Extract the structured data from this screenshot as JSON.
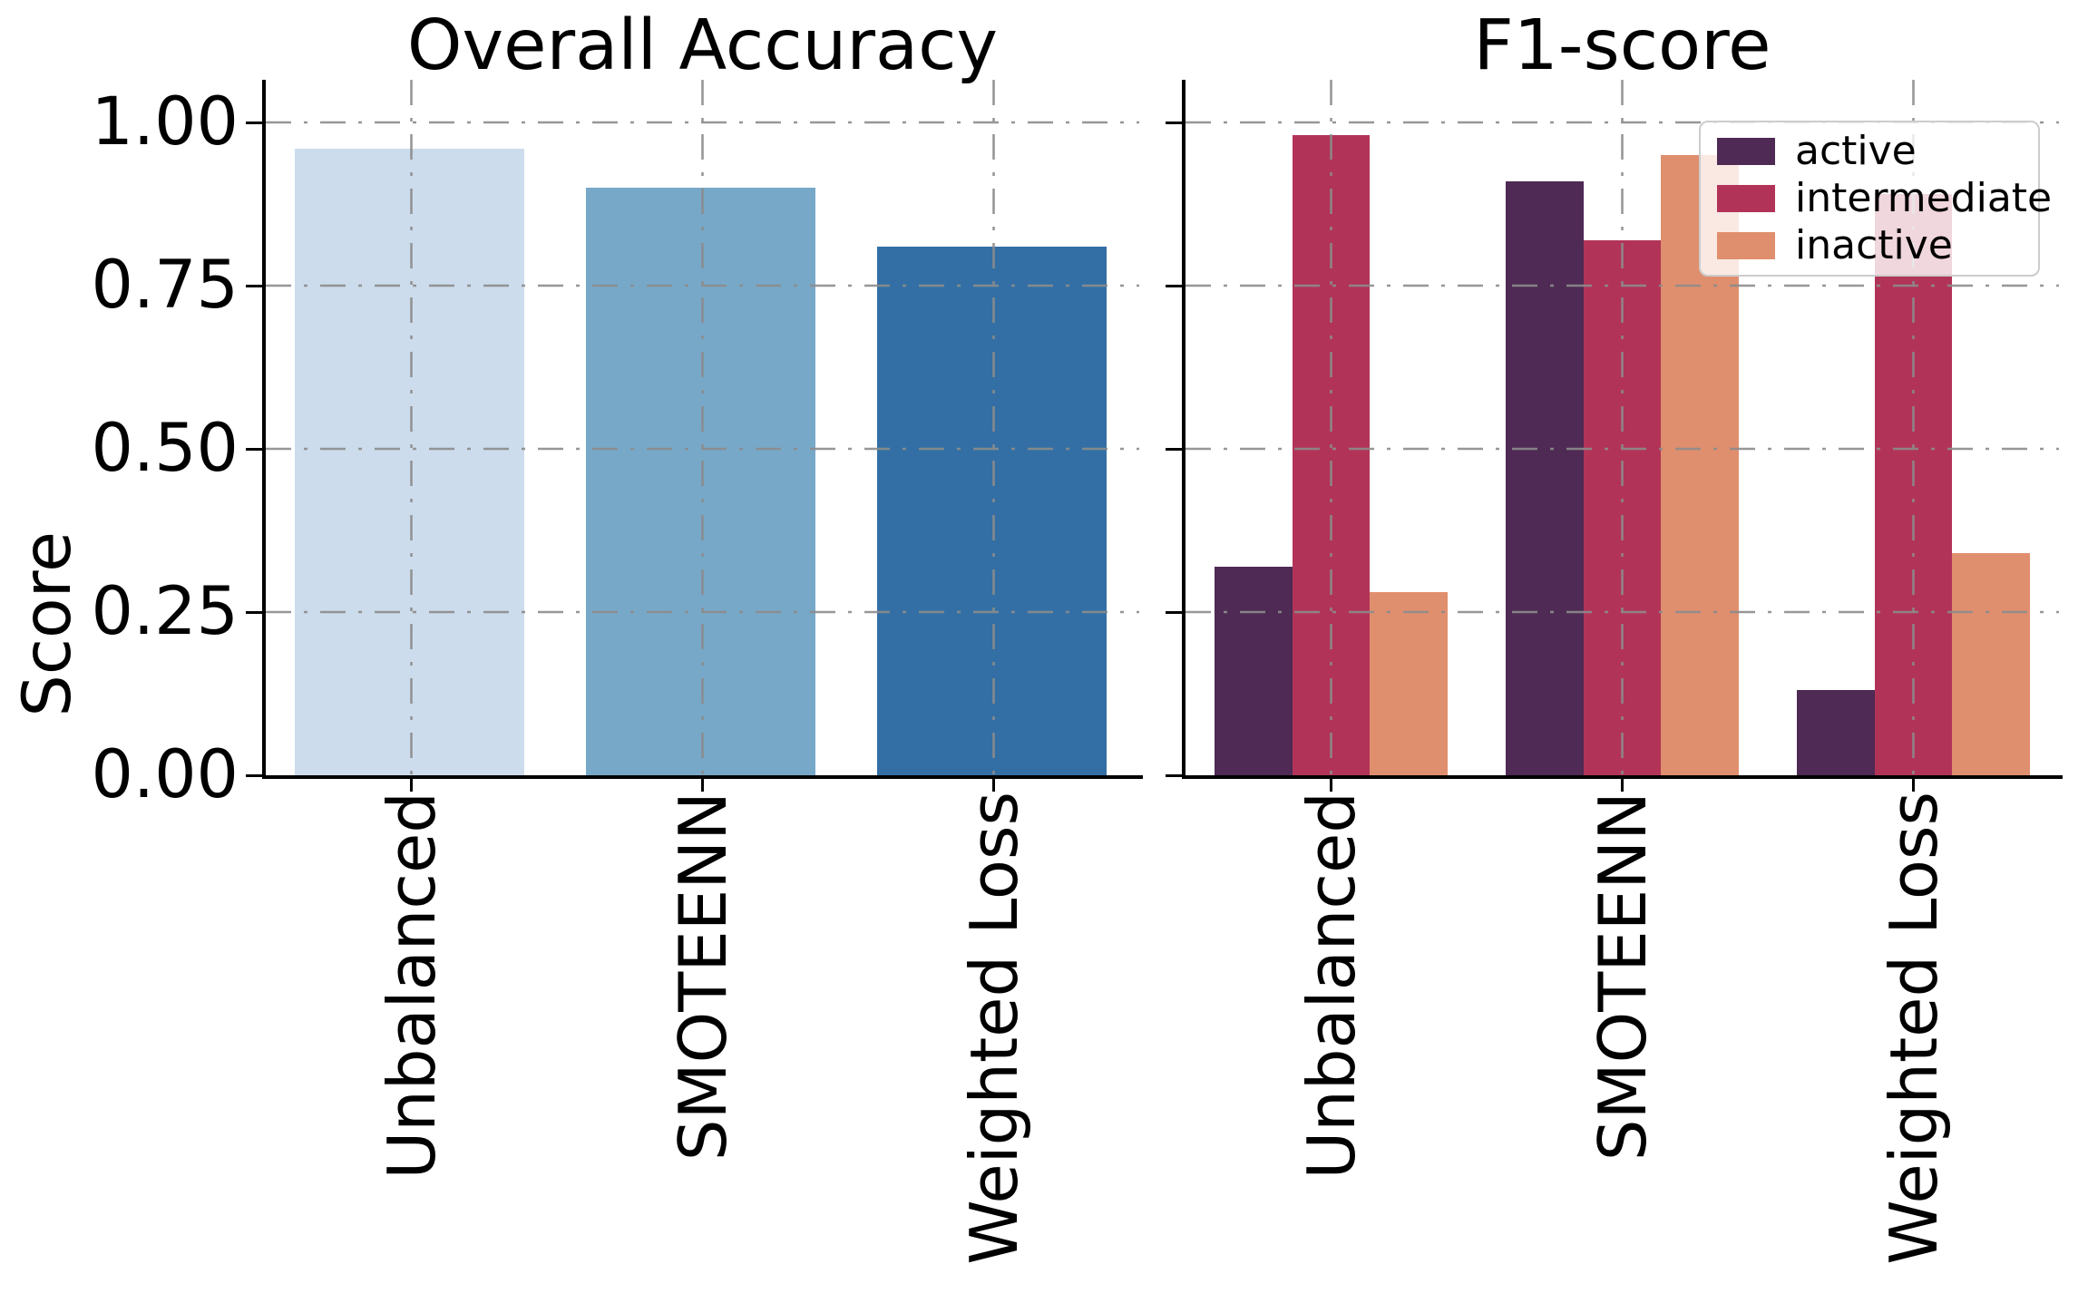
{
  "figure": {
    "background": "#ffffff",
    "text_color": "#000000",
    "grid_color": "#8c8c8c"
  },
  "ylabel": "Score",
  "yticks": {
    "labels": [
      "1.00",
      "0.75",
      "0.50",
      "0.25",
      "0.00"
    ],
    "values": [
      1.0,
      0.75,
      0.5,
      0.25,
      0.0
    ]
  },
  "chart_data": [
    {
      "type": "bar",
      "title": "Overall Accuracy",
      "categories": [
        "Unbalanced",
        "SMOTEENN",
        "Weighted Loss"
      ],
      "values": [
        0.96,
        0.9,
        0.81
      ],
      "bar_colors": [
        "#ccdcec",
        "#78a8c8",
        "#336fa4"
      ],
      "xlabel": "",
      "ylabel": "Score",
      "ylim": [
        0,
        1.065
      ],
      "grid": true,
      "grid_style": "dash-dot"
    },
    {
      "type": "bar",
      "title": "F1-score",
      "categories": [
        "Unbalanced",
        "SMOTEENN",
        "Weighted Loss"
      ],
      "series": [
        {
          "name": "active",
          "color": "#4e2a54",
          "values": [
            0.32,
            0.91,
            0.13
          ]
        },
        {
          "name": "intermediate",
          "color": "#b23358",
          "values": [
            0.98,
            0.82,
            0.89
          ]
        },
        {
          "name": "inactive",
          "color": "#e08f6e",
          "values": [
            0.28,
            0.95,
            0.34
          ]
        }
      ],
      "xlabel": "",
      "ylim": [
        0,
        1.065
      ],
      "grid": true,
      "grid_style": "dash-dot",
      "legend_position": "upper right"
    }
  ]
}
